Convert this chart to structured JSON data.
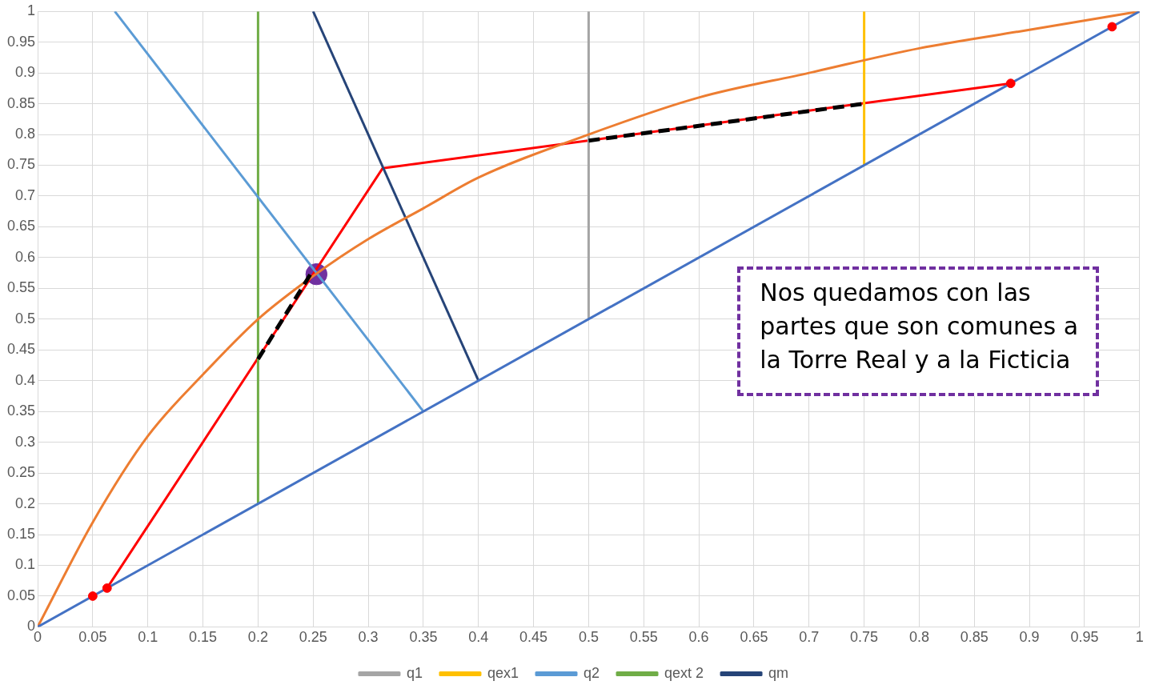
{
  "chart_data": {
    "type": "line",
    "grid": true,
    "legend": "bottom",
    "xlim": [
      0,
      1
    ],
    "ylim": [
      0,
      1
    ],
    "xticks": [
      0,
      0.05,
      0.1,
      0.15,
      0.2,
      0.25,
      0.3,
      0.35,
      0.4,
      0.45,
      0.5,
      0.55,
      0.6,
      0.65,
      0.7,
      0.75,
      0.8,
      0.85,
      0.9,
      0.95,
      1
    ],
    "yticks": [
      0,
      0.05,
      0.1,
      0.15,
      0.2,
      0.25,
      0.3,
      0.35,
      0.4,
      0.45,
      0.5,
      0.55,
      0.6,
      0.65,
      0.7,
      0.75,
      0.8,
      0.85,
      0.9,
      0.95,
      1
    ],
    "annotations": [
      "Nos quedamos con las partes que son comunes a la Torre Real y a la Ficticia"
    ],
    "series": [
      {
        "color": "#4472c4",
        "x": [
          0,
          1
        ],
        "values": [
          0,
          1
        ]
      },
      {
        "color": "#ed7d31",
        "x": [
          0,
          0.05,
          0.1,
          0.15,
          0.2,
          0.25,
          0.3,
          0.35,
          0.4,
          0.5,
          0.6,
          0.7,
          0.8,
          0.9,
          1
        ],
        "values": [
          0,
          0.17,
          0.31,
          0.41,
          0.5,
          0.57,
          0.63,
          0.68,
          0.73,
          0.8,
          0.86,
          0.9,
          0.94,
          0.97,
          1
        ]
      },
      {
        "name": "q1",
        "color": "#a5a5a5",
        "x": [
          0.5,
          0.5
        ],
        "values": [
          0.5,
          1
        ]
      },
      {
        "name": "qex1",
        "color": "#ffc000",
        "x": [
          0.75,
          0.75
        ],
        "values": [
          0.75,
          1
        ]
      },
      {
        "name": "q2",
        "color": "#5b9bd5",
        "x": [
          0.35,
          0.07
        ],
        "values": [
          0.35,
          1
        ]
      },
      {
        "name": "qext 2",
        "color": "#70ad47",
        "x": [
          0.2,
          0.2
        ],
        "values": [
          0.2,
          1
        ]
      },
      {
        "name": "qm",
        "color": "#264478",
        "x": [
          0.4,
          0.25
        ],
        "values": [
          0.4,
          1
        ]
      },
      {
        "color": "#ff0000",
        "x": [
          0.063,
          0.313,
          0.883
        ],
        "values": [
          0.063,
          0.745,
          0.883
        ]
      },
      {
        "color": "#000000",
        "line_style": "dashed",
        "x": [
          0.2,
          0.25
        ],
        "values": [
          0.435,
          0.58
        ]
      },
      {
        "color": "#000000",
        "line_style": "dashed",
        "x": [
          0.5,
          0.75
        ],
        "values": [
          0.79,
          0.85
        ]
      },
      {
        "type": "scatter",
        "color": "#ff0000",
        "marker": "circle",
        "x": [
          0.05,
          0.063,
          0.883,
          0.975
        ],
        "values": [
          0.05,
          0.063,
          0.883,
          0.975
        ]
      },
      {
        "type": "scatter",
        "color": "#7030a0",
        "marker": "circle",
        "x": [
          0.253
        ],
        "values": [
          0.573
        ]
      }
    ]
  }
}
